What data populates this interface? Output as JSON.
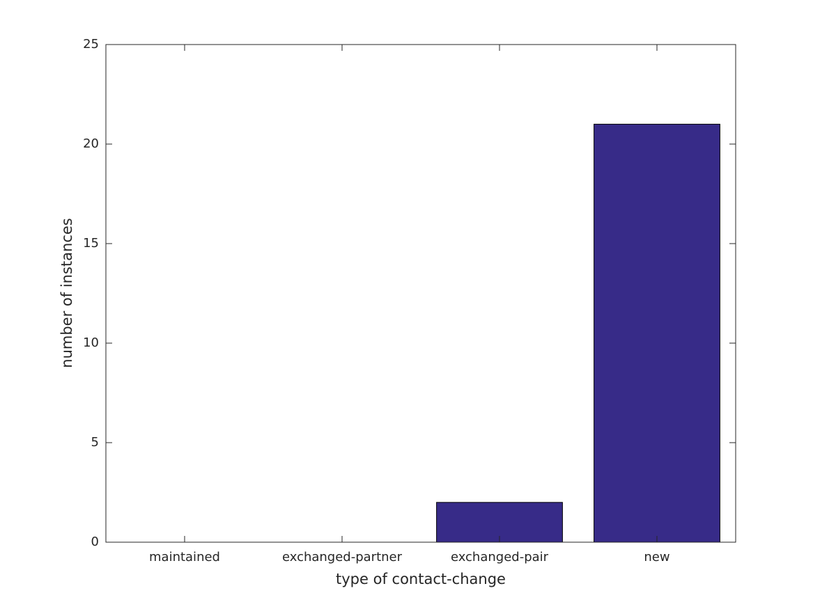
{
  "chart_data": {
    "type": "bar",
    "categories": [
      "maintained",
      "exchanged-partner",
      "exchanged-pair",
      "new"
    ],
    "values": [
      0,
      0,
      2,
      21
    ],
    "color": "#372b88",
    "xlabel": "type of contact-change",
    "ylabel": "number of instances",
    "ylim": [
      0,
      25
    ],
    "yticks": [
      0,
      5,
      10,
      15,
      20,
      25
    ],
    "grid": false
  }
}
